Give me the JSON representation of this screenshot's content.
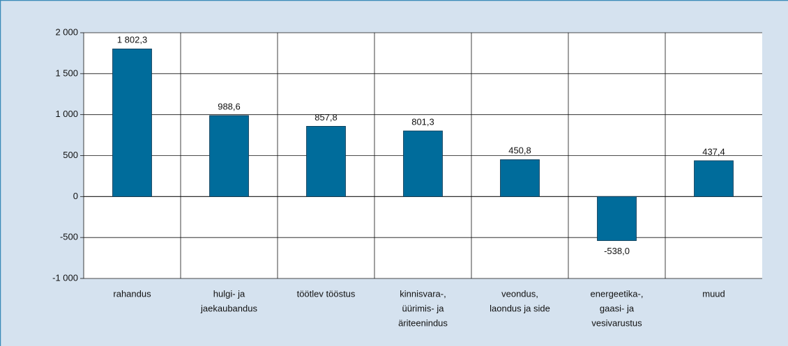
{
  "chart_data": {
    "type": "bar",
    "categories": [
      [
        "rahandus"
      ],
      [
        "hulgi- ja",
        "jaekaubandus"
      ],
      [
        "töötlev tööstus"
      ],
      [
        "kinnisvara-,",
        "üürimis- ja",
        "äriteenindus"
      ],
      [
        "veondus,",
        "laondus ja side"
      ],
      [
        "energeetika-,",
        "gaasi- ja",
        "vesivarustus"
      ],
      [
        "muud"
      ]
    ],
    "values": [
      1802.3,
      988.6,
      857.8,
      801.3,
      450.8,
      -538.0,
      437.4
    ],
    "value_labels": [
      "1 802,3",
      "988,6",
      "857,8",
      "801,3",
      "450,8",
      "-538,0",
      "437,4"
    ],
    "color": "#006c9b",
    "ylim": [
      -1000,
      2000
    ],
    "yticks": [
      {
        "value": -1000,
        "label": "-1 000"
      },
      -500,
      0,
      500,
      {
        "value": 1000,
        "label": "1 000"
      },
      {
        "value": 1500,
        "label": "1 500"
      },
      {
        "value": 2000,
        "label": "2 000"
      }
    ],
    "grid": true
  }
}
